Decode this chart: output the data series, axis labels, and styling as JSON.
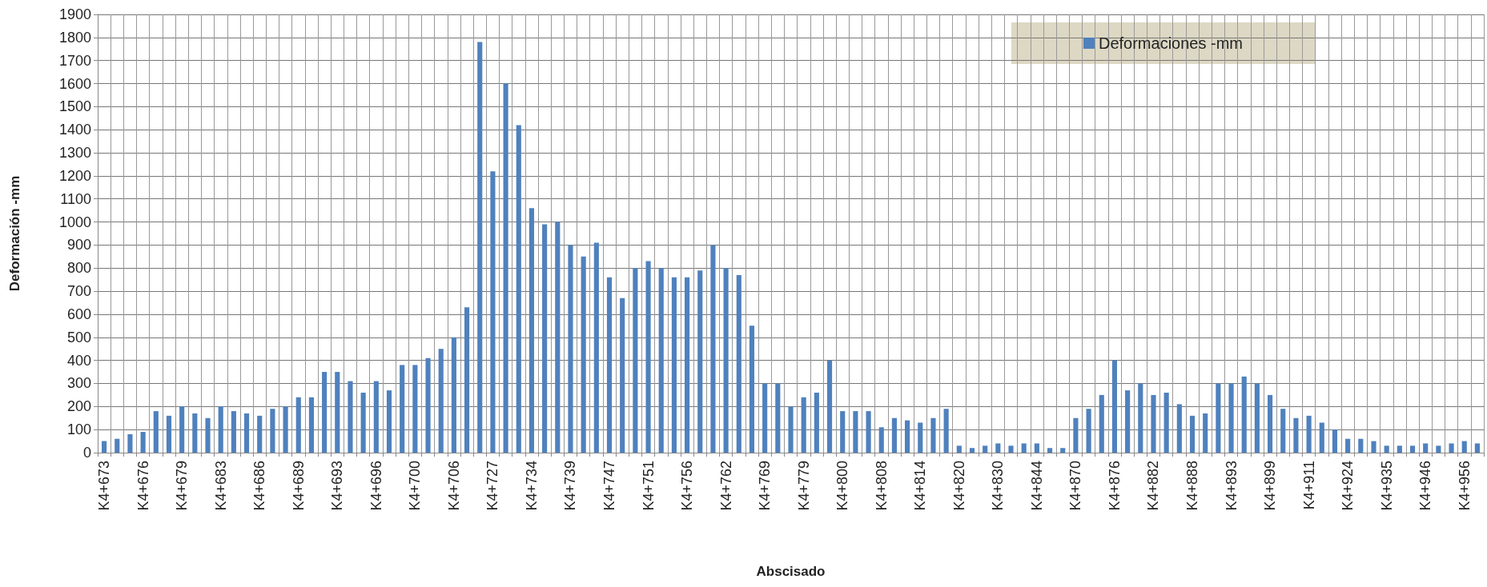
{
  "chart_data": {
    "type": "bar",
    "xlabel": "Abscisado",
    "ylabel": "Deformación -mm",
    "categories": [
      "K4+673",
      null,
      null,
      "K4+676",
      null,
      null,
      "K4+679",
      null,
      null,
      "K4+683",
      null,
      null,
      "K4+686",
      null,
      null,
      "K4+689",
      null,
      null,
      "K4+693",
      null,
      null,
      "K4+696",
      null,
      null,
      "K4+700",
      null,
      null,
      "K4+706",
      null,
      null,
      "K4+727",
      null,
      null,
      "K4+734",
      null,
      null,
      "K4+739",
      null,
      null,
      "K4+747",
      null,
      null,
      "K4+751",
      null,
      null,
      "K4+756",
      null,
      null,
      "K4+762",
      null,
      null,
      "K4+769",
      null,
      null,
      "K4+779",
      null,
      null,
      "K4+800",
      null,
      null,
      "K4+808",
      null,
      null,
      "K4+814",
      null,
      null,
      "K4+820",
      null,
      null,
      "K4+830",
      null,
      null,
      "K4+844",
      null,
      null,
      "K4+870",
      null,
      null,
      "K4+876",
      null,
      null,
      "K4+882",
      null,
      null,
      "K4+888",
      null,
      null,
      "K4+893",
      null,
      null,
      "K4+899",
      null,
      null,
      "K4+911",
      null,
      null,
      "K4+924",
      null,
      null,
      "K4+935",
      null,
      null,
      "K4+946",
      null,
      null,
      "K4+956",
      null
    ],
    "series": [
      {
        "name": "Deformaciones -mm",
        "color": "#4f81bd",
        "values": [
          50,
          60,
          80,
          90,
          180,
          160,
          200,
          170,
          150,
          200,
          180,
          170,
          160,
          190,
          200,
          240,
          240,
          350,
          350,
          310,
          260,
          310,
          270,
          380,
          380,
          410,
          450,
          500,
          630,
          1780,
          1220,
          1600,
          1420,
          1060,
          990,
          1000,
          900,
          850,
          910,
          760,
          670,
          800,
          830,
          800,
          760,
          760,
          790,
          900,
          800,
          770,
          550,
          300,
          300,
          200,
          240,
          260,
          400,
          180,
          180,
          180,
          110,
          150,
          140,
          130,
          150,
          190,
          30,
          20,
          30,
          40,
          30,
          40,
          40,
          20,
          20,
          150,
          190,
          250,
          400,
          270,
          300,
          250,
          260,
          210,
          160,
          170,
          300,
          300,
          330,
          300,
          250,
          190,
          150,
          160,
          130,
          100,
          60,
          60,
          50,
          30,
          30,
          30,
          40,
          30,
          40,
          50,
          40
        ]
      }
    ],
    "ylim": [
      0,
      1900
    ],
    "yticks": [
      0,
      100,
      200,
      300,
      400,
      500,
      600,
      700,
      800,
      900,
      1000,
      1100,
      1200,
      1300,
      1400,
      1500,
      1600,
      1700,
      1800,
      1900
    ],
    "grid": true,
    "legend": "top right"
  }
}
